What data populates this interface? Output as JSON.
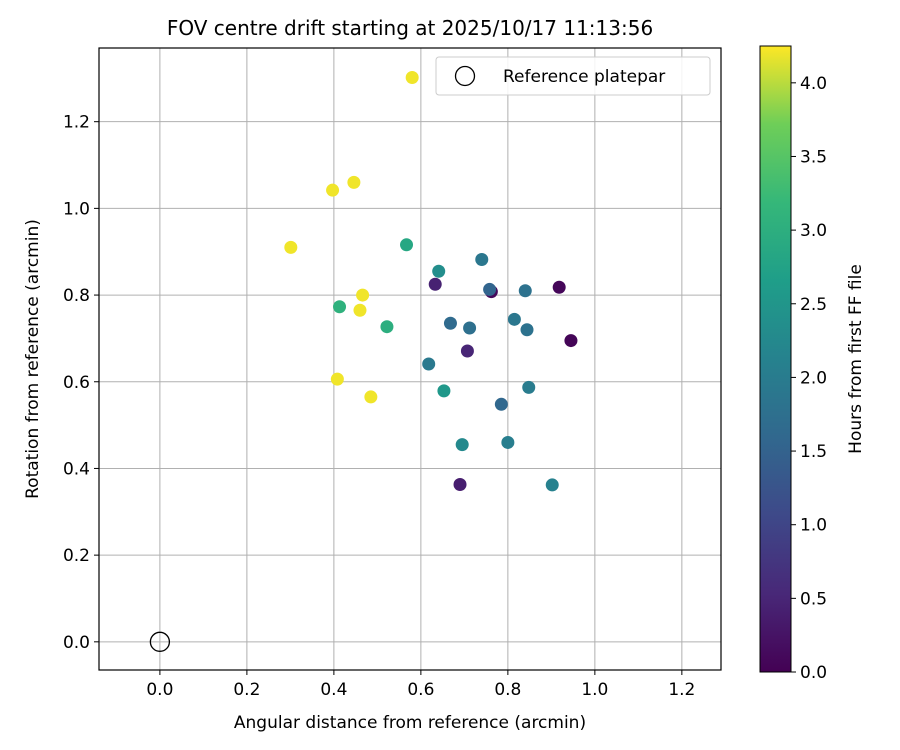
{
  "chart_data": {
    "type": "scatter",
    "title": "FOV centre drift starting at 2025/10/17 11:13:56",
    "xlabel": "Angular distance from reference (arcmin)",
    "ylabel": "Rotation from reference (arcmin)",
    "xlim": [
      -0.14,
      1.29
    ],
    "ylim": [
      -0.065,
      1.37
    ],
    "xticks": [
      0.0,
      0.2,
      0.4,
      0.6,
      0.8,
      1.0,
      1.2
    ],
    "yticks": [
      0.0,
      0.2,
      0.4,
      0.6,
      0.8,
      1.0,
      1.2
    ],
    "grid": true,
    "legend": {
      "location": "upper right",
      "entries": [
        "Reference platepar"
      ]
    },
    "reference_point": {
      "label": "Reference platepar",
      "x": 0.0,
      "y": 0.0
    },
    "colorbar": {
      "label": "Hours from first FF file",
      "colormap": "viridis",
      "range": [
        0.0,
        4.25
      ],
      "ticks": [
        0.0,
        0.5,
        1.0,
        1.5,
        2.0,
        2.5,
        3.0,
        3.5,
        4.0
      ]
    },
    "series": [
      {
        "points": [
          {
            "x": 0.945,
            "y": 0.695,
            "c": 0.05
          },
          {
            "x": 0.918,
            "y": 0.818,
            "c": 0.08
          },
          {
            "x": 0.762,
            "y": 0.808,
            "c": 0.12
          },
          {
            "x": 0.69,
            "y": 0.363,
            "c": 0.4
          },
          {
            "x": 0.633,
            "y": 0.825,
            "c": 0.45
          },
          {
            "x": 0.707,
            "y": 0.671,
            "c": 0.5
          },
          {
            "x": 0.758,
            "y": 0.813,
            "c": 1.55
          },
          {
            "x": 0.785,
            "y": 0.548,
            "c": 1.6
          },
          {
            "x": 0.668,
            "y": 0.735,
            "c": 1.65
          },
          {
            "x": 0.712,
            "y": 0.724,
            "c": 1.75
          },
          {
            "x": 0.84,
            "y": 0.81,
            "c": 1.8
          },
          {
            "x": 0.844,
            "y": 0.72,
            "c": 1.8
          },
          {
            "x": 0.74,
            "y": 0.882,
            "c": 1.9
          },
          {
            "x": 0.815,
            "y": 0.744,
            "c": 1.9
          },
          {
            "x": 0.618,
            "y": 0.641,
            "c": 1.95
          },
          {
            "x": 0.848,
            "y": 0.587,
            "c": 2.0
          },
          {
            "x": 0.8,
            "y": 0.46,
            "c": 2.05
          },
          {
            "x": 0.902,
            "y": 0.362,
            "c": 2.1
          },
          {
            "x": 0.695,
            "y": 0.455,
            "c": 2.25
          },
          {
            "x": 0.641,
            "y": 0.855,
            "c": 2.35
          },
          {
            "x": 0.653,
            "y": 0.579,
            "c": 2.55
          },
          {
            "x": 0.567,
            "y": 0.916,
            "c": 2.85
          },
          {
            "x": 0.522,
            "y": 0.727,
            "c": 3.0
          },
          {
            "x": 0.413,
            "y": 0.773,
            "c": 3.05
          },
          {
            "x": 0.58,
            "y": 1.302,
            "c": 4.2
          },
          {
            "x": 0.446,
            "y": 1.06,
            "c": 4.2
          },
          {
            "x": 0.397,
            "y": 1.042,
            "c": 4.2
          },
          {
            "x": 0.301,
            "y": 0.91,
            "c": 4.2
          },
          {
            "x": 0.466,
            "y": 0.8,
            "c": 4.2
          },
          {
            "x": 0.46,
            "y": 0.765,
            "c": 4.2
          },
          {
            "x": 0.408,
            "y": 0.606,
            "c": 4.2
          },
          {
            "x": 0.485,
            "y": 0.565,
            "c": 4.2
          }
        ]
      }
    ]
  }
}
